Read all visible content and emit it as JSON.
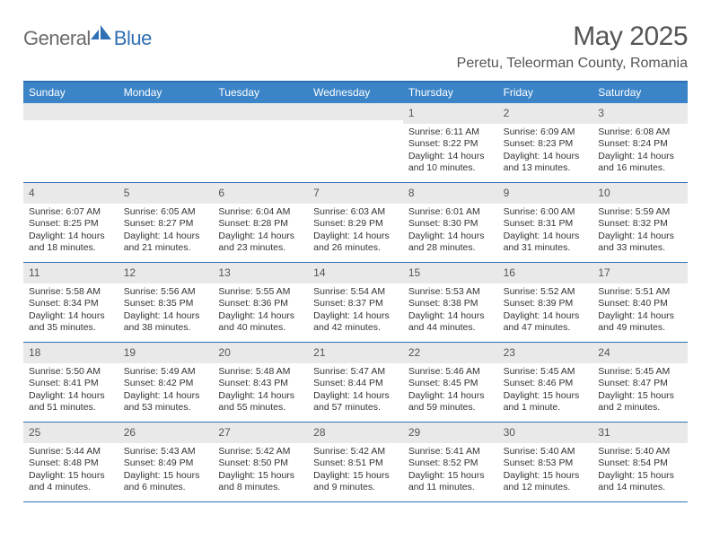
{
  "logo": {
    "general": "General",
    "blue": "Blue"
  },
  "title": "May 2025",
  "location": "Peretu, Teleorman County, Romania",
  "colors": {
    "header_bg": "#3a84c7",
    "header_border": "#2f6fb3",
    "daynum_bg": "#e9e9e9",
    "text_muted": "#555555",
    "text_body": "#333333",
    "logo_gray": "#6b6b6b",
    "logo_blue": "#2f6fb3",
    "page_bg": "#ffffff"
  },
  "typography": {
    "month_title_size": 30,
    "location_size": 16,
    "dow_size": 12,
    "daynum_size": 12,
    "detail_size": 10.5
  },
  "dow": [
    "Sunday",
    "Monday",
    "Tuesday",
    "Wednesday",
    "Thursday",
    "Friday",
    "Saturday"
  ],
  "weeks": [
    [
      {
        "n": "",
        "sr": "",
        "ss": "",
        "dl": ""
      },
      {
        "n": "",
        "sr": "",
        "ss": "",
        "dl": ""
      },
      {
        "n": "",
        "sr": "",
        "ss": "",
        "dl": ""
      },
      {
        "n": "",
        "sr": "",
        "ss": "",
        "dl": ""
      },
      {
        "n": "1",
        "sr": "Sunrise: 6:11 AM",
        "ss": "Sunset: 8:22 PM",
        "dl": "Daylight: 14 hours and 10 minutes."
      },
      {
        "n": "2",
        "sr": "Sunrise: 6:09 AM",
        "ss": "Sunset: 8:23 PM",
        "dl": "Daylight: 14 hours and 13 minutes."
      },
      {
        "n": "3",
        "sr": "Sunrise: 6:08 AM",
        "ss": "Sunset: 8:24 PM",
        "dl": "Daylight: 14 hours and 16 minutes."
      }
    ],
    [
      {
        "n": "4",
        "sr": "Sunrise: 6:07 AM",
        "ss": "Sunset: 8:25 PM",
        "dl": "Daylight: 14 hours and 18 minutes."
      },
      {
        "n": "5",
        "sr": "Sunrise: 6:05 AM",
        "ss": "Sunset: 8:27 PM",
        "dl": "Daylight: 14 hours and 21 minutes."
      },
      {
        "n": "6",
        "sr": "Sunrise: 6:04 AM",
        "ss": "Sunset: 8:28 PM",
        "dl": "Daylight: 14 hours and 23 minutes."
      },
      {
        "n": "7",
        "sr": "Sunrise: 6:03 AM",
        "ss": "Sunset: 8:29 PM",
        "dl": "Daylight: 14 hours and 26 minutes."
      },
      {
        "n": "8",
        "sr": "Sunrise: 6:01 AM",
        "ss": "Sunset: 8:30 PM",
        "dl": "Daylight: 14 hours and 28 minutes."
      },
      {
        "n": "9",
        "sr": "Sunrise: 6:00 AM",
        "ss": "Sunset: 8:31 PM",
        "dl": "Daylight: 14 hours and 31 minutes."
      },
      {
        "n": "10",
        "sr": "Sunrise: 5:59 AM",
        "ss": "Sunset: 8:32 PM",
        "dl": "Daylight: 14 hours and 33 minutes."
      }
    ],
    [
      {
        "n": "11",
        "sr": "Sunrise: 5:58 AM",
        "ss": "Sunset: 8:34 PM",
        "dl": "Daylight: 14 hours and 35 minutes."
      },
      {
        "n": "12",
        "sr": "Sunrise: 5:56 AM",
        "ss": "Sunset: 8:35 PM",
        "dl": "Daylight: 14 hours and 38 minutes."
      },
      {
        "n": "13",
        "sr": "Sunrise: 5:55 AM",
        "ss": "Sunset: 8:36 PM",
        "dl": "Daylight: 14 hours and 40 minutes."
      },
      {
        "n": "14",
        "sr": "Sunrise: 5:54 AM",
        "ss": "Sunset: 8:37 PM",
        "dl": "Daylight: 14 hours and 42 minutes."
      },
      {
        "n": "15",
        "sr": "Sunrise: 5:53 AM",
        "ss": "Sunset: 8:38 PM",
        "dl": "Daylight: 14 hours and 44 minutes."
      },
      {
        "n": "16",
        "sr": "Sunrise: 5:52 AM",
        "ss": "Sunset: 8:39 PM",
        "dl": "Daylight: 14 hours and 47 minutes."
      },
      {
        "n": "17",
        "sr": "Sunrise: 5:51 AM",
        "ss": "Sunset: 8:40 PM",
        "dl": "Daylight: 14 hours and 49 minutes."
      }
    ],
    [
      {
        "n": "18",
        "sr": "Sunrise: 5:50 AM",
        "ss": "Sunset: 8:41 PM",
        "dl": "Daylight: 14 hours and 51 minutes."
      },
      {
        "n": "19",
        "sr": "Sunrise: 5:49 AM",
        "ss": "Sunset: 8:42 PM",
        "dl": "Daylight: 14 hours and 53 minutes."
      },
      {
        "n": "20",
        "sr": "Sunrise: 5:48 AM",
        "ss": "Sunset: 8:43 PM",
        "dl": "Daylight: 14 hours and 55 minutes."
      },
      {
        "n": "21",
        "sr": "Sunrise: 5:47 AM",
        "ss": "Sunset: 8:44 PM",
        "dl": "Daylight: 14 hours and 57 minutes."
      },
      {
        "n": "22",
        "sr": "Sunrise: 5:46 AM",
        "ss": "Sunset: 8:45 PM",
        "dl": "Daylight: 14 hours and 59 minutes."
      },
      {
        "n": "23",
        "sr": "Sunrise: 5:45 AM",
        "ss": "Sunset: 8:46 PM",
        "dl": "Daylight: 15 hours and 1 minute."
      },
      {
        "n": "24",
        "sr": "Sunrise: 5:45 AM",
        "ss": "Sunset: 8:47 PM",
        "dl": "Daylight: 15 hours and 2 minutes."
      }
    ],
    [
      {
        "n": "25",
        "sr": "Sunrise: 5:44 AM",
        "ss": "Sunset: 8:48 PM",
        "dl": "Daylight: 15 hours and 4 minutes."
      },
      {
        "n": "26",
        "sr": "Sunrise: 5:43 AM",
        "ss": "Sunset: 8:49 PM",
        "dl": "Daylight: 15 hours and 6 minutes."
      },
      {
        "n": "27",
        "sr": "Sunrise: 5:42 AM",
        "ss": "Sunset: 8:50 PM",
        "dl": "Daylight: 15 hours and 8 minutes."
      },
      {
        "n": "28",
        "sr": "Sunrise: 5:42 AM",
        "ss": "Sunset: 8:51 PM",
        "dl": "Daylight: 15 hours and 9 minutes."
      },
      {
        "n": "29",
        "sr": "Sunrise: 5:41 AM",
        "ss": "Sunset: 8:52 PM",
        "dl": "Daylight: 15 hours and 11 minutes."
      },
      {
        "n": "30",
        "sr": "Sunrise: 5:40 AM",
        "ss": "Sunset: 8:53 PM",
        "dl": "Daylight: 15 hours and 12 minutes."
      },
      {
        "n": "31",
        "sr": "Sunrise: 5:40 AM",
        "ss": "Sunset: 8:54 PM",
        "dl": "Daylight: 15 hours and 14 minutes."
      }
    ]
  ]
}
